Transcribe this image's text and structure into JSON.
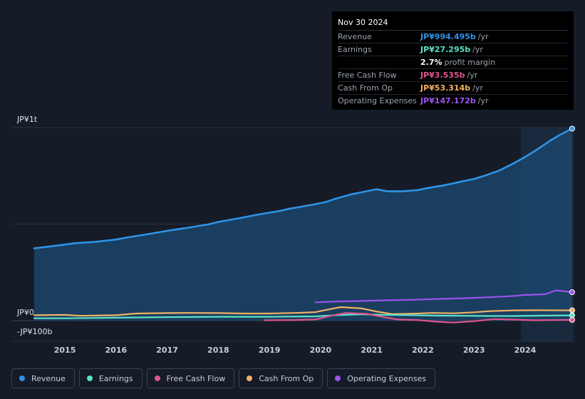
{
  "tooltip": {
    "date": "Nov 30 2024",
    "rows": [
      {
        "label": "Revenue",
        "value": "JP¥994.495b",
        "unit": "/yr",
        "color": "#2e93e6"
      },
      {
        "label": "Earnings",
        "value": "JP¥27.295b",
        "unit": "/yr",
        "color": "#5de0c8"
      },
      {
        "label": "",
        "value": "2.7%",
        "unit": "profit margin",
        "color": "#ffffff"
      },
      {
        "label": "Free Cash Flow",
        "value": "JP¥3.535b",
        "unit": "/yr",
        "color": "#e0558f"
      },
      {
        "label": "Cash From Op",
        "value": "JP¥53.314b",
        "unit": "/yr",
        "color": "#f0b264"
      },
      {
        "label": "Operating Expenses",
        "value": "JP¥147.172b",
        "unit": "/yr",
        "color": "#9b52f0"
      }
    ]
  },
  "legend": [
    {
      "label": "Revenue",
      "color": "#2e93e6"
    },
    {
      "label": "Earnings",
      "color": "#5de0c8"
    },
    {
      "label": "Free Cash Flow",
      "color": "#e0558f"
    },
    {
      "label": "Cash From Op",
      "color": "#f0b264"
    },
    {
      "label": "Operating Expenses",
      "color": "#9b52f0"
    }
  ],
  "chart_data": {
    "type": "area",
    "title": "",
    "xlabel": "",
    "ylabel": "",
    "units": "JP¥ billions",
    "y_tick_labels": [
      {
        "value": 1000,
        "label": "JP¥1t"
      },
      {
        "value": 0,
        "label": "JP¥0"
      },
      {
        "value": -100,
        "label": "-JP¥100b"
      }
    ],
    "ylim": [
      -100,
      1000
    ],
    "xlim": [
      2014.4,
      2024.92
    ],
    "x_ticks": [
      2015,
      2016,
      2017,
      2018,
      2019,
      2020,
      2021,
      2022,
      2023,
      2024
    ],
    "x_tick_labels": [
      "2015",
      "2016",
      "2017",
      "2018",
      "2019",
      "2020",
      "2021",
      "2022",
      "2023",
      "2024"
    ],
    "highlight_from": 2023.92,
    "series": [
      {
        "name": "Revenue",
        "color": "#2e93e6",
        "fill": true,
        "x": [
          2014.4,
          2014.7,
          2015.0,
          2015.2,
          2015.6,
          2016.0,
          2016.2,
          2016.6,
          2017.0,
          2017.4,
          2017.8,
          2018.0,
          2018.4,
          2018.8,
          2019.2,
          2019.4,
          2019.8,
          2020.1,
          2020.3,
          2020.6,
          2020.9,
          2021.1,
          2021.3,
          2021.6,
          2021.9,
          2022.1,
          2022.4,
          2022.7,
          2023.0,
          2023.2,
          2023.5,
          2023.8,
          2024.0,
          2024.2,
          2024.5,
          2024.7,
          2024.92
        ],
        "values": [
          374,
          384,
          394,
          401,
          408,
          420,
          430,
          447,
          465,
          481,
          498,
          511,
          530,
          550,
          568,
          580,
          598,
          614,
          632,
          654,
          670,
          680,
          670,
          670,
          676,
          687,
          700,
          717,
          734,
          750,
          778,
          818,
          848,
          880,
          934,
          965,
          994.495
        ]
      },
      {
        "name": "Operating Expenses",
        "color": "#9b52f0",
        "fill": false,
        "x": [
          2019.9,
          2020.3,
          2020.8,
          2021.3,
          2021.8,
          2022.3,
          2022.8,
          2023.3,
          2023.8,
          2024.0,
          2024.4,
          2024.6,
          2024.92
        ],
        "values": [
          95,
          99,
          102,
          105,
          108,
          112,
          116,
          121,
          128,
          133,
          137,
          157,
          147.172
        ]
      },
      {
        "name": "Cash From Op",
        "color": "#f0b264",
        "fill": false,
        "x": [
          2014.4,
          2015.0,
          2015.3,
          2016.0,
          2016.4,
          2017.0,
          2017.4,
          2018.0,
          2018.5,
          2019.0,
          2019.5,
          2019.9,
          2020.1,
          2020.4,
          2020.8,
          2021.1,
          2021.4,
          2021.8,
          2022.2,
          2022.6,
          2023.0,
          2023.3,
          2023.8,
          2024.3,
          2024.92
        ],
        "values": [
          28,
          30,
          25,
          28,
          37,
          39,
          40,
          39,
          37,
          37,
          40,
          44,
          55,
          70,
          63,
          47,
          34,
          36,
          40,
          38,
          43,
          49,
          53,
          54,
          53.314
        ]
      },
      {
        "name": "Earnings",
        "color": "#5de0c8",
        "fill": false,
        "x": [
          2014.4,
          2015.0,
          2016.0,
          2017.0,
          2018.0,
          2019.0,
          2019.9,
          2020.3,
          2020.8,
          2021.2,
          2021.8,
          2022.3,
          2022.8,
          2023.3,
          2023.8,
          2024.3,
          2024.92
        ],
        "values": [
          12,
          12,
          15,
          18,
          20,
          20,
          22,
          28,
          33,
          30,
          28,
          26,
          25,
          24,
          24,
          26,
          27.295
        ]
      },
      {
        "name": "Free Cash Flow",
        "color": "#e0558f",
        "fill": false,
        "x": [
          2018.9,
          2019.5,
          2019.9,
          2020.2,
          2020.5,
          2020.9,
          2021.2,
          2021.5,
          2021.9,
          2022.3,
          2022.6,
          2023.0,
          2023.4,
          2023.8,
          2024.2,
          2024.6,
          2024.92
        ],
        "values": [
          2,
          3,
          6,
          25,
          40,
          35,
          20,
          6,
          3,
          -6,
          -10,
          -3,
          8,
          5,
          2,
          3,
          3.535
        ]
      }
    ]
  }
}
